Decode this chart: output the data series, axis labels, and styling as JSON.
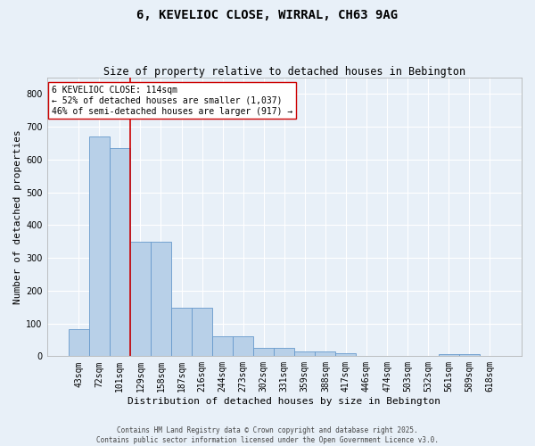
{
  "title": "6, KEVELIOC CLOSE, WIRRAL, CH63 9AG",
  "subtitle": "Size of property relative to detached houses in Bebington",
  "xlabel": "Distribution of detached houses by size in Bebington",
  "ylabel": "Number of detached properties",
  "categories": [
    "43sqm",
    "72sqm",
    "101sqm",
    "129sqm",
    "158sqm",
    "187sqm",
    "216sqm",
    "244sqm",
    "273sqm",
    "302sqm",
    "331sqm",
    "359sqm",
    "388sqm",
    "417sqm",
    "446sqm",
    "474sqm",
    "503sqm",
    "532sqm",
    "561sqm",
    "589sqm",
    "618sqm"
  ],
  "values": [
    82,
    670,
    635,
    350,
    350,
    148,
    148,
    60,
    60,
    26,
    26,
    15,
    15,
    8,
    0,
    0,
    0,
    0,
    7,
    7,
    0
  ],
  "bar_color": "#b8d0e8",
  "bar_edge_color": "#6699cc",
  "background_color": "#e8f0f8",
  "grid_color": "#ffffff",
  "vline_color": "#cc0000",
  "vline_pos": 2.5,
  "annotation_text": "6 KEVELIOC CLOSE: 114sqm\n← 52% of detached houses are smaller (1,037)\n46% of semi-detached houses are larger (917) →",
  "annotation_box_facecolor": "#ffffff",
  "annotation_box_edgecolor": "#cc0000",
  "footer_text": "Contains HM Land Registry data © Crown copyright and database right 2025.\nContains public sector information licensed under the Open Government Licence v3.0.",
  "ylim": [
    0,
    850
  ],
  "yticks": [
    0,
    100,
    200,
    300,
    400,
    500,
    600,
    700,
    800
  ],
  "title_fontsize": 10,
  "subtitle_fontsize": 8.5,
  "ylabel_fontsize": 8,
  "xlabel_fontsize": 8,
  "tick_fontsize": 7,
  "footer_fontsize": 5.5
}
